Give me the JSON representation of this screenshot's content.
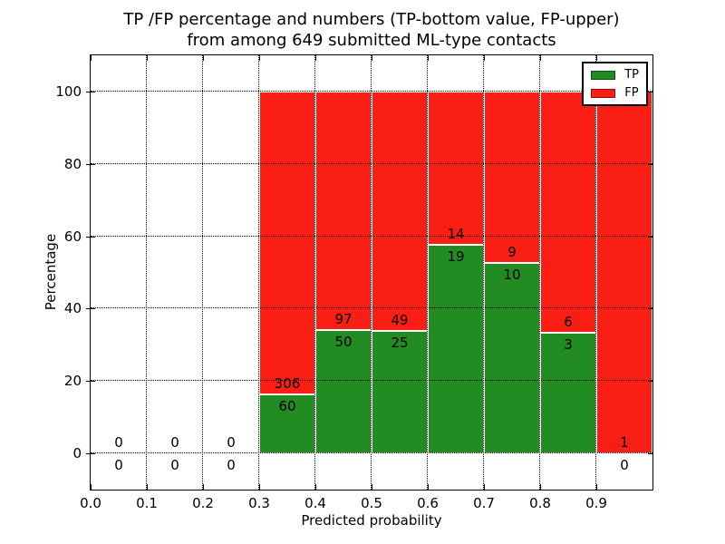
{
  "chart_data": {
    "type": "bar",
    "stacked": true,
    "title_lines": [
      "TP /FP percentage and numbers (TP-bottom value, FP-upper)",
      "from among 649 submitted ML-type contacts"
    ],
    "xlabel": "Predicted probability",
    "ylabel": "Percentage",
    "xlim": [
      0.0,
      1.0
    ],
    "ylim": [
      -10,
      110
    ],
    "xticks": [
      "0.0",
      "0.1",
      "0.2",
      "0.3",
      "0.4",
      "0.5",
      "0.6",
      "0.7",
      "0.8",
      "0.9"
    ],
    "yticks": [
      0,
      20,
      40,
      60,
      80,
      100
    ],
    "grid": "dotted",
    "bin_width": 0.1,
    "legend": {
      "position": "upper right",
      "entries": [
        {
          "label": "TP",
          "color": "#228b22"
        },
        {
          "label": "FP",
          "color": "#fa1e14"
        }
      ]
    },
    "bins": [
      {
        "start": 0.0,
        "tp": 0,
        "fp": 0,
        "tp_pct": null
      },
      {
        "start": 0.1,
        "tp": 0,
        "fp": 0,
        "tp_pct": null
      },
      {
        "start": 0.2,
        "tp": 0,
        "fp": 0,
        "tp_pct": null
      },
      {
        "start": 0.3,
        "tp": 60,
        "fp": 306,
        "tp_pct": 16.4
      },
      {
        "start": 0.4,
        "tp": 50,
        "fp": 97,
        "tp_pct": 34.0
      },
      {
        "start": 0.5,
        "tp": 25,
        "fp": 49,
        "tp_pct": 33.8
      },
      {
        "start": 0.6,
        "tp": 19,
        "fp": 14,
        "tp_pct": 57.6
      },
      {
        "start": 0.7,
        "tp": 10,
        "fp": 9,
        "tp_pct": 52.6
      },
      {
        "start": 0.8,
        "tp": 3,
        "fp": 6,
        "tp_pct": 33.3
      },
      {
        "start": 0.9,
        "tp": 0,
        "fp": 1,
        "tp_pct": 0.0
      }
    ]
  }
}
